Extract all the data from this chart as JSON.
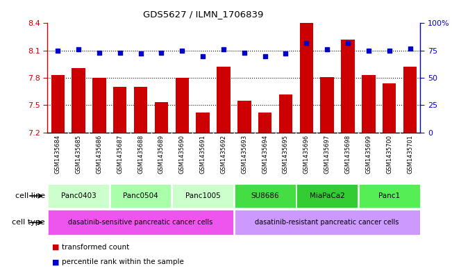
{
  "title": "GDS5627 / ILMN_1706839",
  "samples": [
    "GSM1435684",
    "GSM1435685",
    "GSM1435686",
    "GSM1435687",
    "GSM1435688",
    "GSM1435689",
    "GSM1435690",
    "GSM1435691",
    "GSM1435692",
    "GSM1435693",
    "GSM1435694",
    "GSM1435695",
    "GSM1435696",
    "GSM1435697",
    "GSM1435698",
    "GSM1435699",
    "GSM1435700",
    "GSM1435701"
  ],
  "bar_values": [
    7.83,
    7.91,
    7.8,
    7.7,
    7.7,
    7.53,
    7.8,
    7.42,
    7.92,
    7.55,
    7.42,
    7.62,
    8.4,
    7.81,
    8.22,
    7.83,
    7.74,
    7.92
  ],
  "dot_values": [
    75,
    76,
    73,
    73,
    72,
    73,
    75,
    70,
    76,
    73,
    70,
    72,
    82,
    76,
    82,
    75,
    75,
    77
  ],
  "ylim_left": [
    7.2,
    8.4
  ],
  "ylim_right": [
    0,
    100
  ],
  "yticks_left": [
    7.2,
    7.5,
    7.8,
    8.1
  ],
  "yticks_left_top": 8.4,
  "yticks_right": [
    0,
    25,
    50,
    75,
    100
  ],
  "bar_color": "#cc0000",
  "dot_color": "#0000cc",
  "cell_lines": [
    {
      "label": "Panc0403",
      "start": 0,
      "end": 3,
      "color": "#ccffcc"
    },
    {
      "label": "Panc0504",
      "start": 3,
      "end": 6,
      "color": "#aaffaa"
    },
    {
      "label": "Panc1005",
      "start": 6,
      "end": 9,
      "color": "#ccffcc"
    },
    {
      "label": "SU8686",
      "start": 9,
      "end": 12,
      "color": "#44dd44"
    },
    {
      "label": "MiaPaCa2",
      "start": 12,
      "end": 15,
      "color": "#33cc33"
    },
    {
      "label": "Panc1",
      "start": 15,
      "end": 18,
      "color": "#55ee55"
    }
  ],
  "cell_types": [
    {
      "label": "dasatinib-sensitive pancreatic cancer cells",
      "start": 0,
      "end": 9,
      "color": "#ee55ee"
    },
    {
      "label": "dasatinib-resistant pancreatic cancer cells",
      "start": 9,
      "end": 18,
      "color": "#cc99ff"
    }
  ],
  "legend_bar_label": "transformed count",
  "legend_dot_label": "percentile rank within the sample",
  "cell_line_label": "cell line",
  "cell_type_label": "cell type",
  "background_color": "#ffffff",
  "axis_left_color": "#cc0000",
  "axis_right_color": "#0000cc",
  "xlabel_bg": "#cccccc",
  "cell_line_bg": "#cccccc",
  "cell_type_bg": "#cccccc"
}
